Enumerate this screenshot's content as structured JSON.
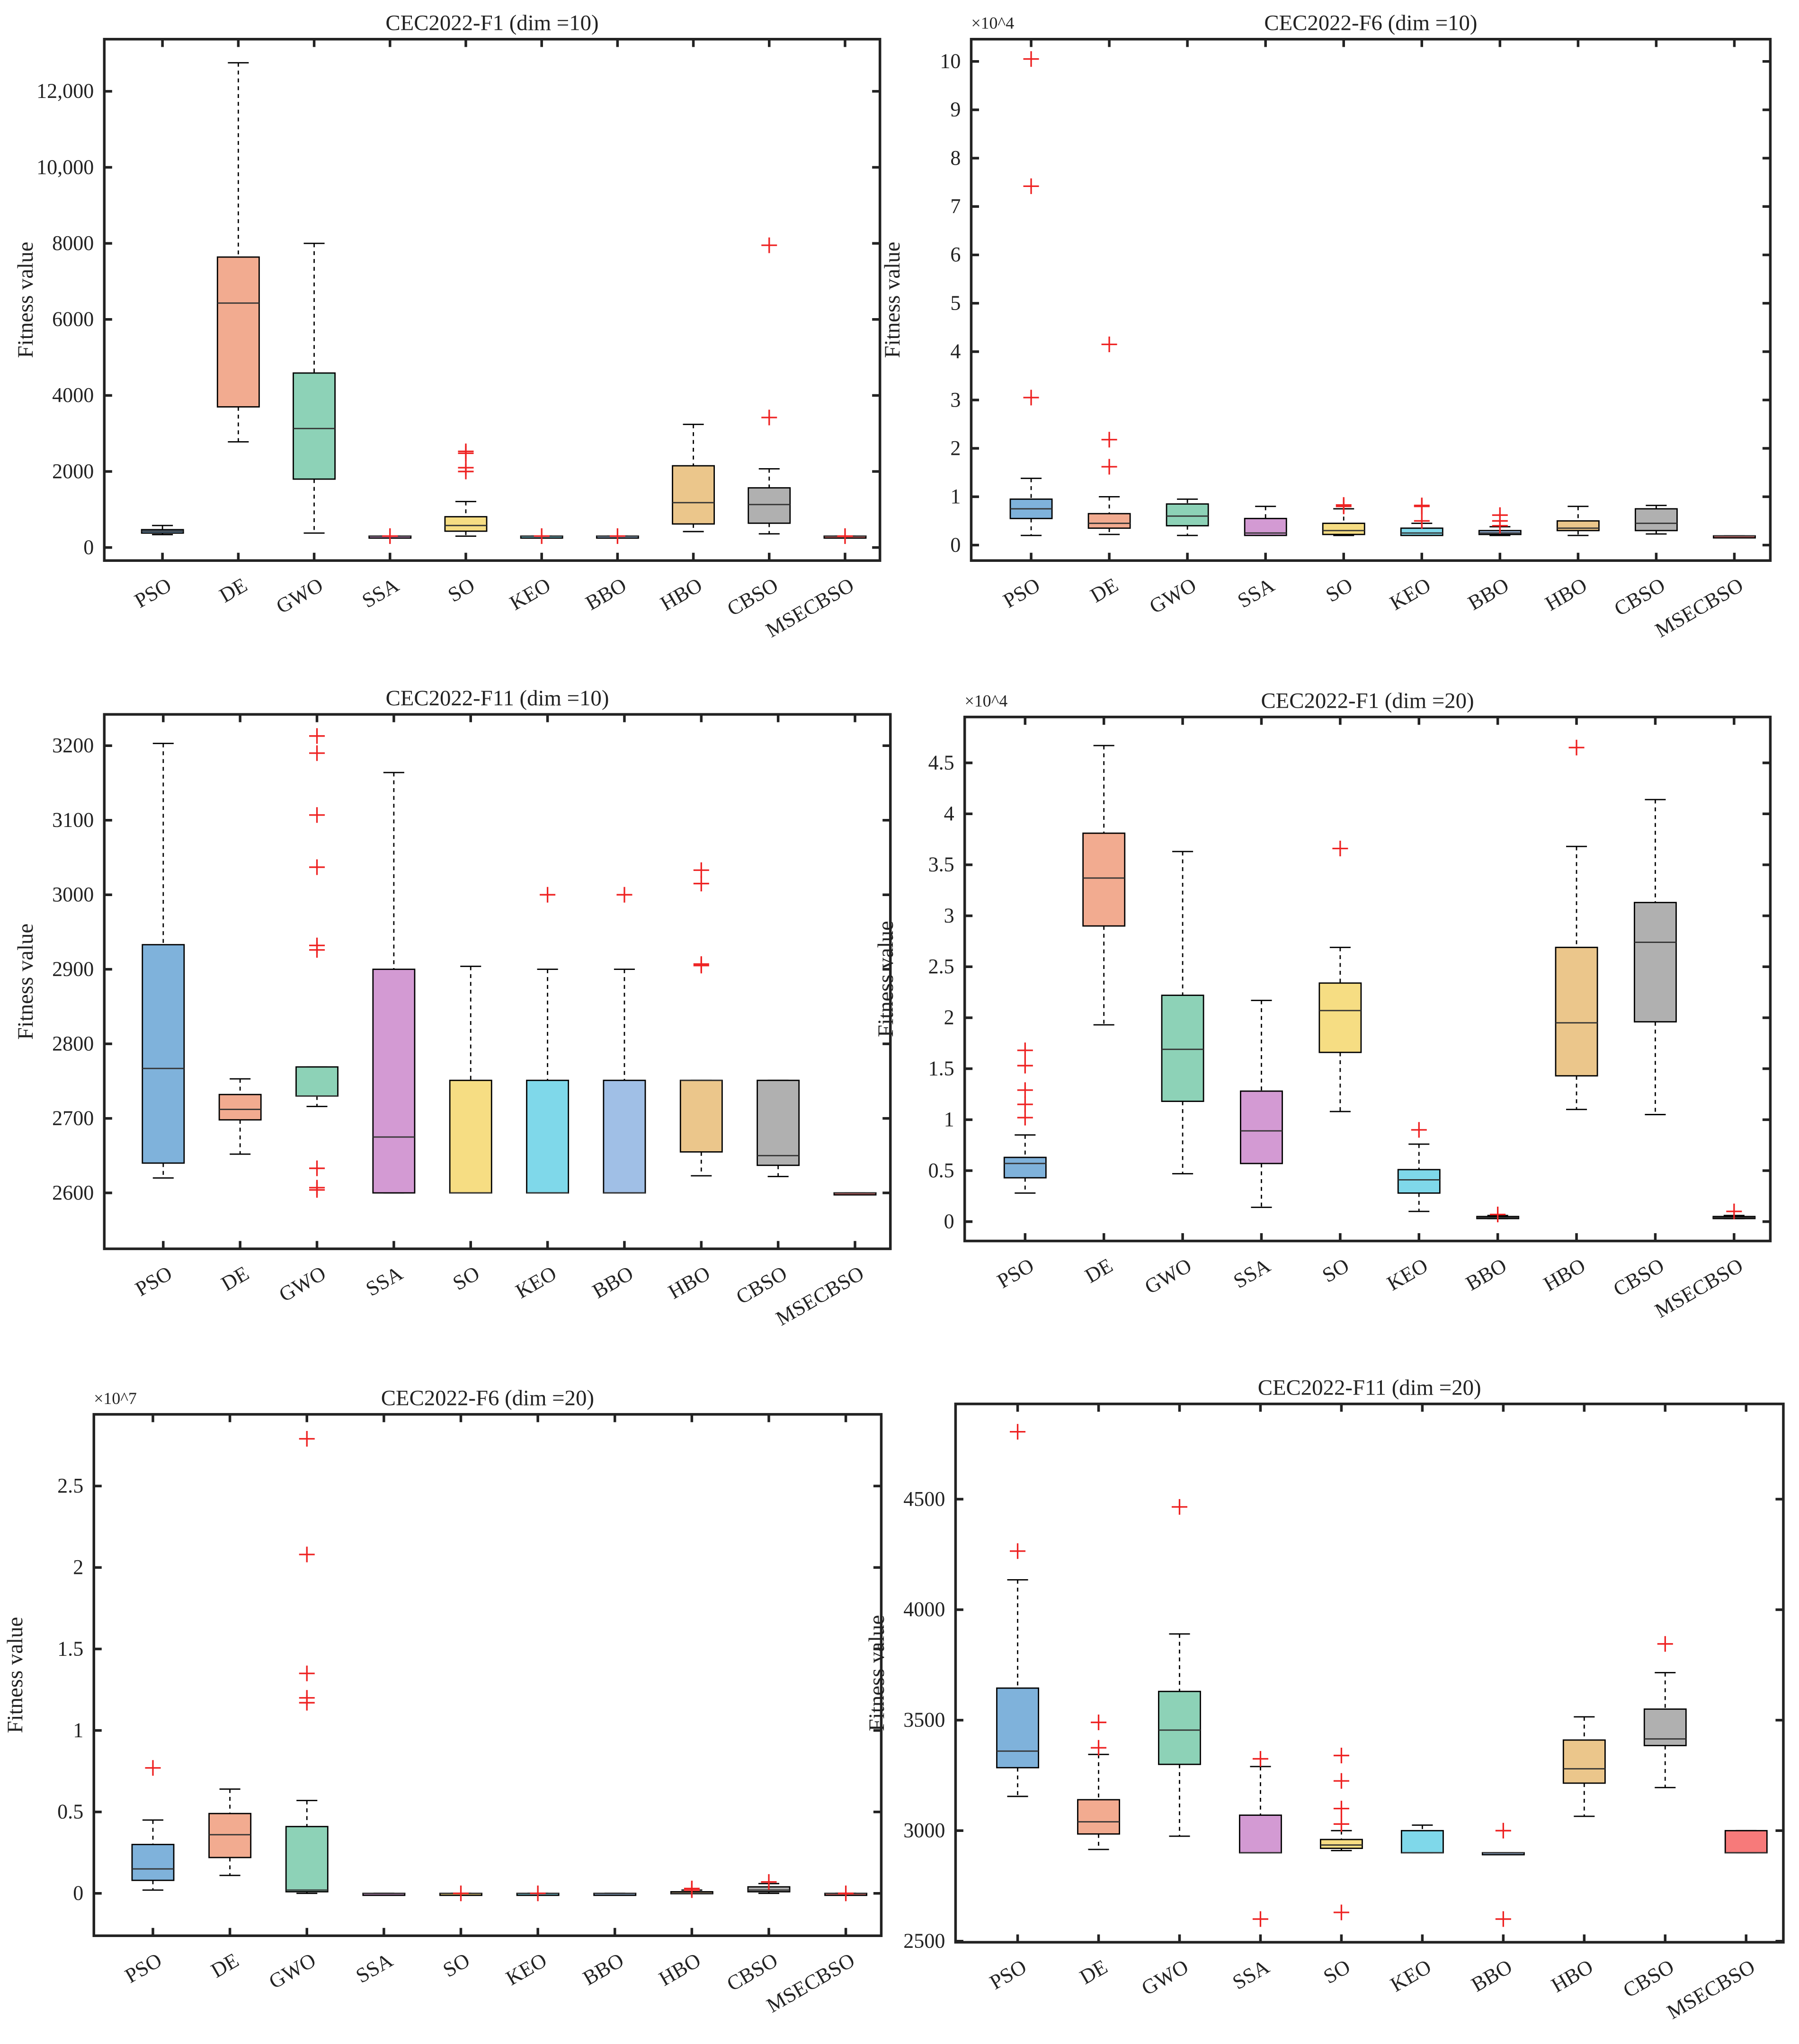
{
  "chart_data": [
    {
      "type": "box",
      "title": "CEC2022-F1 (dim =10)",
      "ylabel": "Fitness value",
      "multiplier": "",
      "ylim": [
        -343,
        13371
      ],
      "yticks": [
        0,
        2000,
        4000,
        6000,
        8000,
        10000,
        12000
      ],
      "ytick_labels": [
        "0",
        "2000",
        "4000",
        "6000",
        "8000",
        "10,000",
        "12,000"
      ],
      "categories": [
        "PSO",
        "DE",
        "GWO",
        "SSA",
        "SO",
        "KEO",
        "BBO",
        "HBO",
        "CBSO",
        "MSECBSO"
      ],
      "boxes": [
        {
          "stats": [
            340,
            380,
            430,
            470,
            580
          ],
          "outliers": []
        },
        {
          "stats": [
            2780,
            3700,
            6430,
            7640,
            12750
          ],
          "outliers": []
        },
        {
          "stats": [
            380,
            1800,
            3130,
            4590,
            8000
          ],
          "outliers": []
        },
        {
          "stats": [
            300,
            300,
            300,
            300,
            300
          ],
          "outliers": [
            300
          ]
        },
        {
          "stats": [
            300,
            430,
            580,
            810,
            1210
          ],
          "outliers": [
            2000,
            2100,
            2480,
            2530
          ]
        },
        {
          "stats": [
            300,
            300,
            300,
            300,
            300
          ],
          "outliers": [
            300
          ]
        },
        {
          "stats": [
            300,
            300,
            300,
            300,
            300
          ],
          "outliers": [
            300
          ]
        },
        {
          "stats": [
            420,
            620,
            1180,
            2150,
            3240
          ],
          "outliers": []
        },
        {
          "stats": [
            360,
            640,
            1130,
            1570,
            2070
          ],
          "outliers": [
            3420,
            7950
          ]
        },
        {
          "stats": [
            300,
            300,
            300,
            300,
            300
          ],
          "outliers": [
            300
          ]
        }
      ]
    },
    {
      "type": "box",
      "title": "CEC2022-F6 (dim =10)",
      "ylabel": "Fitness value",
      "multiplier": "×10^4",
      "ylim": [
        -0.32,
        10.46
      ],
      "yticks": [
        0,
        1,
        2,
        3,
        4,
        5,
        6,
        7,
        8,
        9,
        10
      ],
      "ytick_labels": [
        "0",
        "1",
        "2",
        "3",
        "4",
        "5",
        "6",
        "7",
        "8",
        "9",
        "10"
      ],
      "categories": [
        "PSO",
        "DE",
        "GWO",
        "SSA",
        "SO",
        "KEO",
        "BBO",
        "HBO",
        "CBSO",
        "MSECBSO"
      ],
      "boxes": [
        {
          "stats": [
            0.2,
            0.55,
            0.75,
            0.95,
            1.38
          ],
          "outliers": [
            3.05,
            7.42,
            10.05
          ]
        },
        {
          "stats": [
            0.22,
            0.35,
            0.45,
            0.65,
            1.0
          ],
          "outliers": [
            1.62,
            2.18,
            4.15
          ]
        },
        {
          "stats": [
            0.2,
            0.4,
            0.6,
            0.85,
            0.95
          ],
          "outliers": []
        },
        {
          "stats": [
            0.2,
            0.2,
            0.25,
            0.55,
            0.8
          ],
          "outliers": []
        },
        {
          "stats": [
            0.2,
            0.22,
            0.3,
            0.45,
            0.75
          ],
          "outliers": [
            0.8,
            0.83
          ]
        },
        {
          "stats": [
            0.2,
            0.2,
            0.25,
            0.35,
            0.45
          ],
          "outliers": [
            0.5,
            0.8,
            0.82
          ]
        },
        {
          "stats": [
            0.2,
            0.22,
            0.25,
            0.3,
            0.38
          ],
          "outliers": [
            0.4,
            0.5,
            0.62
          ]
        },
        {
          "stats": [
            0.2,
            0.3,
            0.35,
            0.5,
            0.8
          ],
          "outliers": []
        },
        {
          "stats": [
            0.23,
            0.3,
            0.45,
            0.75,
            0.82
          ],
          "outliers": []
        },
        {
          "stats": [
            0.19,
            0.19,
            0.19,
            0.19,
            0.19
          ],
          "outliers": []
        }
      ]
    },
    {
      "type": "box",
      "title": "CEC2022-F11 (dim =10)",
      "ylabel": "Fitness value",
      "multiplier": "",
      "ylim": [
        2525,
        3242
      ],
      "yticks": [
        2600,
        2700,
        2800,
        2900,
        3000,
        3100,
        3200
      ],
      "ytick_labels": [
        "2600",
        "2700",
        "2800",
        "2900",
        "3000",
        "3100",
        "3200"
      ],
      "categories": [
        "PSO",
        "DE",
        "GWO",
        "SSA",
        "SO",
        "KEO",
        "BBO",
        "HBO",
        "CBSO",
        "MSECBSO"
      ],
      "boxes": [
        {
          "stats": [
            2620,
            2640,
            2767,
            2933,
            3203
          ],
          "outliers": []
        },
        {
          "stats": [
            2652,
            2698,
            2712,
            2732,
            2753
          ],
          "outliers": []
        },
        {
          "stats": [
            2716,
            2730,
            2730,
            2769,
            2769
          ],
          "outliers": [
            2604,
            2607,
            2633,
            2926,
            2932,
            3037,
            3107,
            3190,
            3213
          ]
        },
        {
          "stats": [
            2600,
            2600,
            2675,
            2900,
            3164
          ],
          "outliers": []
        },
        {
          "stats": [
            2600,
            2600,
            2600,
            2751,
            2904
          ],
          "outliers": []
        },
        {
          "stats": [
            2600,
            2600,
            2600,
            2751,
            2900
          ],
          "outliers": [
            3000
          ]
        },
        {
          "stats": [
            2600,
            2600,
            2600,
            2751,
            2900
          ],
          "outliers": [
            3000
          ]
        },
        {
          "stats": [
            2623,
            2655,
            2751,
            2751,
            2751
          ],
          "outliers": [
            2905,
            2907,
            3015,
            3033
          ]
        },
        {
          "stats": [
            2622,
            2637,
            2650,
            2751,
            2751
          ],
          "outliers": []
        },
        {
          "stats": [
            2600,
            2600,
            2600,
            2600,
            2600
          ],
          "outliers": []
        }
      ]
    },
    {
      "type": "box",
      "title": "CEC2022-F1 (dim =20)",
      "ylabel": "Fitness value",
      "multiplier": "×10^4",
      "ylim": [
        -0.19,
        4.95
      ],
      "yticks": [
        0,
        0.5,
        1,
        1.5,
        2,
        2.5,
        3,
        3.5,
        4,
        4.5
      ],
      "ytick_labels": [
        "0",
        "0.5",
        "1",
        "1.5",
        "2",
        "2.5",
        "3",
        "3.5",
        "4",
        "4.5"
      ],
      "categories": [
        "PSO",
        "DE",
        "GWO",
        "SSA",
        "SO",
        "KEO",
        "BBO",
        "HBO",
        "CBSO",
        "MSECBSO"
      ],
      "boxes": [
        {
          "stats": [
            0.28,
            0.43,
            0.57,
            0.63,
            0.85
          ],
          "outliers": [
            1.02,
            1.15,
            1.29,
            1.53,
            1.68
          ]
        },
        {
          "stats": [
            1.93,
            2.9,
            3.37,
            3.81,
            4.67
          ],
          "outliers": []
        },
        {
          "stats": [
            0.47,
            1.18,
            1.69,
            2.22,
            3.63
          ],
          "outliers": []
        },
        {
          "stats": [
            0.14,
            0.57,
            0.89,
            1.28,
            2.17
          ],
          "outliers": []
        },
        {
          "stats": [
            1.08,
            1.66,
            2.07,
            2.34,
            2.69
          ],
          "outliers": [
            3.66
          ]
        },
        {
          "stats": [
            0.1,
            0.28,
            0.41,
            0.51,
            0.76
          ],
          "outliers": [
            0.9
          ]
        },
        {
          "stats": [
            0.03,
            0.03,
            0.04,
            0.05,
            0.06
          ],
          "outliers": [
            0.07
          ]
        },
        {
          "stats": [
            1.1,
            1.43,
            1.95,
            2.69,
            3.68
          ],
          "outliers": [
            4.65
          ]
        },
        {
          "stats": [
            1.05,
            1.96,
            2.74,
            3.13,
            4.14
          ],
          "outliers": []
        },
        {
          "stats": [
            0.03,
            0.03,
            0.04,
            0.05,
            0.06
          ],
          "outliers": [
            0.1
          ]
        }
      ]
    },
    {
      "type": "box",
      "title": "CEC2022-F6 (dim =20)",
      "ylabel": "Fitness value",
      "multiplier": "×10^7",
      "ylim": [
        -0.26,
        2.94
      ],
      "yticks": [
        0,
        0.5,
        1,
        1.5,
        2,
        2.5
      ],
      "ytick_labels": [
        "0",
        "0.5",
        "1",
        "1.5",
        "2",
        "2.5"
      ],
      "categories": [
        "PSO",
        "DE",
        "GWO",
        "SSA",
        "SO",
        "KEO",
        "BBO",
        "HBO",
        "CBSO",
        "MSECBSO"
      ],
      "boxes": [
        {
          "stats": [
            0.02,
            0.08,
            0.15,
            0.3,
            0.45
          ],
          "outliers": [
            0.77
          ]
        },
        {
          "stats": [
            0.11,
            0.22,
            0.36,
            0.49,
            0.64
          ],
          "outliers": []
        },
        {
          "stats": [
            0,
            0.01,
            0.02,
            0.41,
            0.57
          ],
          "outliers": [
            1.17,
            1.2,
            1.35,
            2.08,
            2.79
          ]
        },
        {
          "stats": [
            0,
            0,
            0,
            0,
            0
          ],
          "outliers": []
        },
        {
          "stats": [
            0,
            0,
            0,
            0,
            0
          ],
          "outliers": [
            0
          ]
        },
        {
          "stats": [
            0,
            0,
            0,
            0,
            0
          ],
          "outliers": [
            0
          ]
        },
        {
          "stats": [
            0,
            0,
            0,
            0,
            0
          ],
          "outliers": []
        },
        {
          "stats": [
            0,
            0,
            0,
            0.01,
            0.02
          ],
          "outliers": [
            0.02,
            0.03
          ]
        },
        {
          "stats": [
            0,
            0.01,
            0.02,
            0.04,
            0.06
          ],
          "outliers": [
            0.07
          ]
        },
        {
          "stats": [
            0,
            0,
            0,
            0,
            0
          ],
          "outliers": [
            0
          ]
        }
      ]
    },
    {
      "type": "box",
      "title": "CEC2022-F11 (dim =20)",
      "ylabel": "Fitness value",
      "multiplier": "",
      "ylim": [
        2495,
        4931
      ],
      "yticks": [
        2500,
        3000,
        3500,
        4000,
        4500
      ],
      "ytick_labels": [
        "2500",
        "3000",
        "3500",
        "4000",
        "4500"
      ],
      "categories": [
        "PSO",
        "DE",
        "GWO",
        "SSA",
        "SO",
        "KEO",
        "BBO",
        "HBO",
        "CBSO",
        "MSECBSO"
      ],
      "boxes": [
        {
          "stats": [
            3155,
            3285,
            3360,
            3645,
            4135
          ],
          "outliers": [
            4265,
            4805
          ]
        },
        {
          "stats": [
            2915,
            2985,
            3040,
            3140,
            3345
          ],
          "outliers": [
            3375,
            3490
          ]
        },
        {
          "stats": [
            2975,
            3300,
            3455,
            3630,
            3890
          ],
          "outliers": [
            4465
          ]
        },
        {
          "stats": [
            2900,
            2900,
            2900,
            3070,
            3290
          ],
          "outliers": [
            2600,
            3325
          ]
        },
        {
          "stats": [
            2910,
            2920,
            2935,
            2960,
            3000
          ],
          "outliers": [
            2630,
            3030,
            3100,
            3225,
            3340
          ]
        },
        {
          "stats": [
            2900,
            2900,
            2900,
            3000,
            3025
          ],
          "outliers": []
        },
        {
          "stats": [
            2900,
            2900,
            2900,
            2900,
            2900
          ],
          "outliers": [
            2600,
            3000
          ]
        },
        {
          "stats": [
            3065,
            3215,
            3280,
            3410,
            3515
          ],
          "outliers": []
        },
        {
          "stats": [
            3195,
            3385,
            3415,
            3550,
            3715
          ],
          "outliers": [
            3845
          ]
        },
        {
          "stats": [
            2900,
            2900,
            2900,
            3000,
            3000
          ],
          "outliers": []
        }
      ]
    }
  ],
  "colors": {
    "PSO": "#7fb2db",
    "DE": "#f2ab90",
    "GWO": "#8dd2b7",
    "SSA": "#d39ad3",
    "SO": "#f6dd83",
    "KEO": "#7fd8ea",
    "BBO": "#a0bfe6",
    "HBO": "#ebc68b",
    "CBSO": "#b0b0b0",
    "MSECBSO": "#f77a7a",
    "outlier": "#ee2222",
    "axis": "#222222"
  }
}
